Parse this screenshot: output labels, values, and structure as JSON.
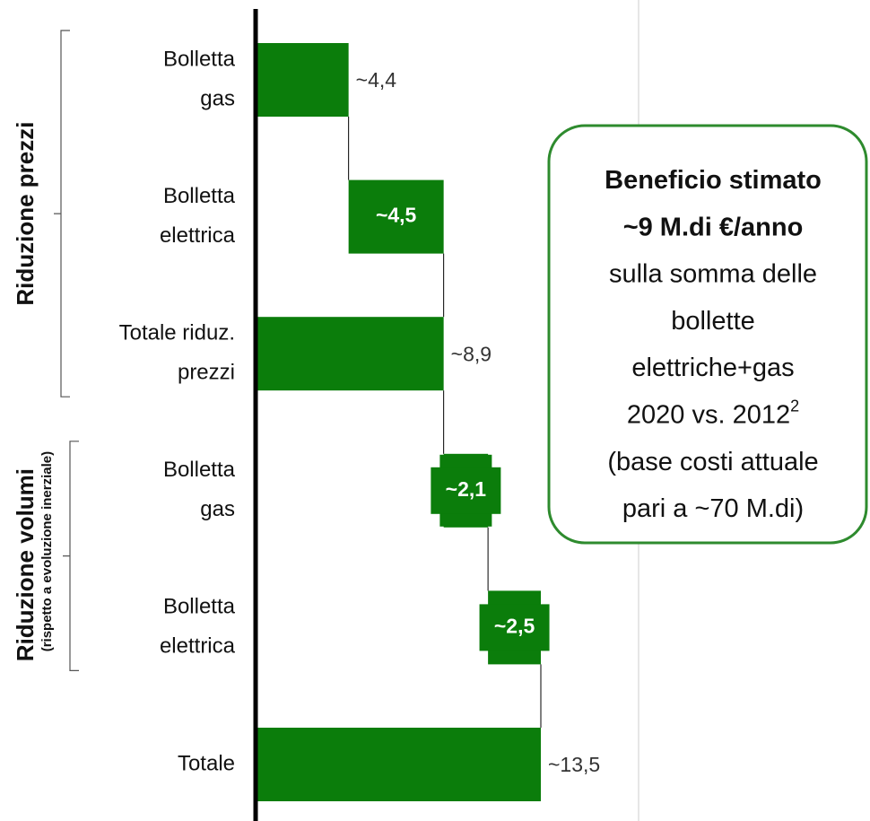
{
  "chart_data": {
    "type": "waterfall",
    "orientation": "horizontal",
    "categories": [
      [
        "Bolletta",
        "gas"
      ],
      [
        "Bolletta",
        "elettrica"
      ],
      [
        "Totale riduz.",
        "prezzi"
      ],
      [
        "Bolletta",
        "gas"
      ],
      [
        "Bolletta",
        "elettrica"
      ],
      [
        "Totale"
      ]
    ],
    "values": [
      4.4,
      4.5,
      8.9,
      2.1,
      2.5,
      13.5
    ],
    "value_labels": [
      "~4,4",
      "~4,5",
      "~8,9",
      "~2,1",
      "~2,5",
      "~13,5"
    ],
    "measures": [
      "relative",
      "relative",
      "total",
      "relative",
      "relative",
      "total"
    ],
    "label_position": [
      "outside",
      "inside",
      "outside",
      "inside",
      "inside",
      "outside"
    ],
    "color": "#0b7d0b",
    "groups": [
      {
        "label": "Riduzione prezzi",
        "from": 0,
        "to": 2
      },
      {
        "label": "Riduzione volumi",
        "sublabel": "(rispetto a evoluzione inerziale)",
        "from": 3,
        "to": 4
      }
    ],
    "callout": {
      "lines": [
        "Beneficio stimato",
        "~9 M.di €/anno",
        "sulla somma delle",
        "bollette",
        "elettriche+gas",
        "2020 vs. 2012",
        "(base costi attuale",
        "pari a ~70 M.di)"
      ],
      "bold_lines": 2,
      "footnote_line": 5,
      "footnote": "2",
      "border_color": "#2e8b2e"
    }
  }
}
